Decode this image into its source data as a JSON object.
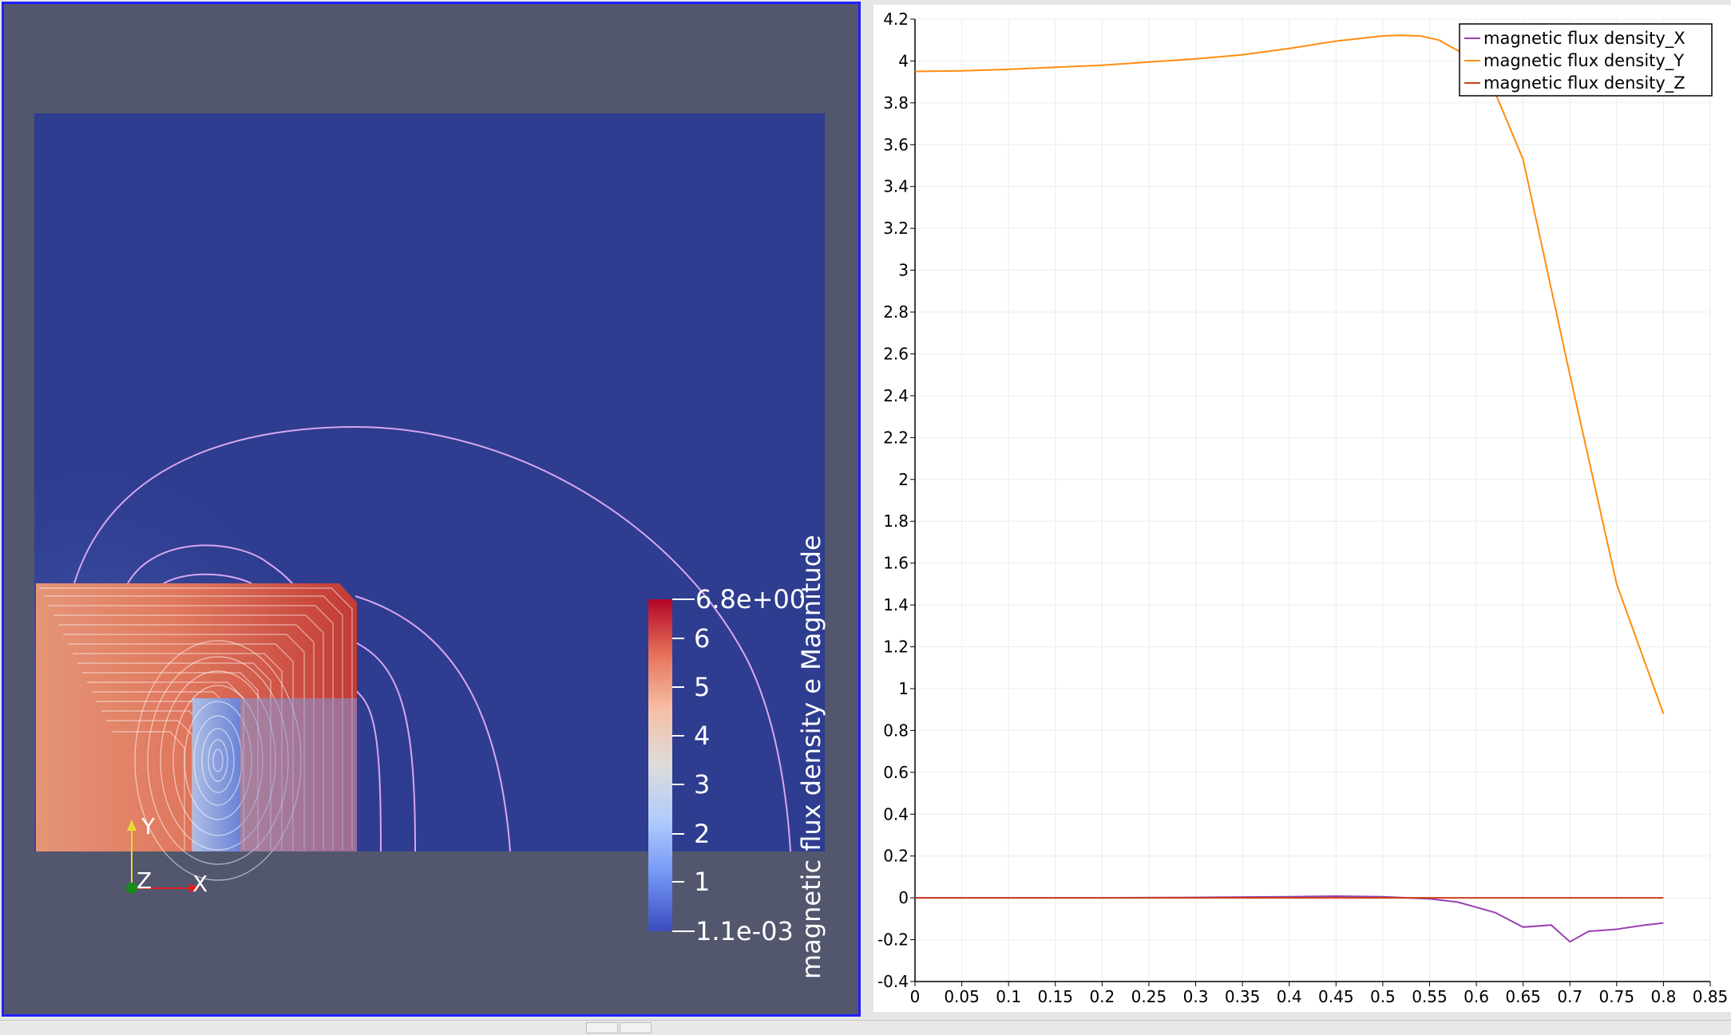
{
  "render_view": {
    "colorbar": {
      "title": "magnetic flux density e Magnitude",
      "max_label": "6.8e+00",
      "min_label": "1.1e-03",
      "tick_labels": [
        "6",
        "5",
        "4",
        "3",
        "2",
        "1"
      ],
      "colors": [
        "#3b4cc0",
        "#7396f5",
        "#b0cbfc",
        "#dddcdb",
        "#f6bfa6",
        "#e7745b",
        "#b40426"
      ]
    },
    "axes": {
      "x_label": "X",
      "y_label": "Y",
      "z_label": "Z"
    },
    "colors": {
      "background": "#52576e",
      "field_low": "#2e3d8f",
      "border": "#2020ff"
    }
  },
  "chart_data": {
    "type": "line",
    "xlim": [
      0,
      0.85
    ],
    "ylim": [
      -0.4,
      4.2
    ],
    "x_ticks": [
      "0",
      "0.05",
      "0.1",
      "0.15",
      "0.2",
      "0.25",
      "0.3",
      "0.35",
      "0.4",
      "0.45",
      "0.5",
      "0.55",
      "0.6",
      "0.65",
      "0.7",
      "0.75",
      "0.8",
      "0.85"
    ],
    "y_ticks": [
      "-0.4",
      "-0.2",
      "0",
      "0.2",
      "0.4",
      "0.6",
      "0.8",
      "1",
      "1.2",
      "1.4",
      "1.6",
      "1.8",
      "2",
      "2.2",
      "2.4",
      "2.6",
      "2.8",
      "3",
      "3.2",
      "3.4",
      "3.6",
      "3.8",
      "4",
      "4.2"
    ],
    "legend_position": "top-right",
    "series": [
      {
        "name": "magnetic flux density_X",
        "color": "#9b3fb0",
        "x": [
          0,
          0.1,
          0.2,
          0.3,
          0.4,
          0.45,
          0.5,
          0.55,
          0.58,
          0.62,
          0.65,
          0.68,
          0.7,
          0.72,
          0.75,
          0.78,
          0.8
        ],
        "y": [
          0,
          0,
          0,
          0.002,
          0.005,
          0.008,
          0.005,
          -0.005,
          -0.02,
          -0.07,
          -0.14,
          -0.13,
          -0.21,
          -0.16,
          -0.15,
          -0.13,
          -0.12
        ]
      },
      {
        "name": "magnetic flux density_Y",
        "color": "#ff8c10",
        "x": [
          0,
          0.05,
          0.1,
          0.15,
          0.2,
          0.25,
          0.3,
          0.35,
          0.4,
          0.45,
          0.5,
          0.52,
          0.54,
          0.56,
          0.58,
          0.6,
          0.62,
          0.65,
          0.7,
          0.75,
          0.8
        ],
        "y": [
          3.95,
          3.953,
          3.96,
          3.97,
          3.98,
          3.995,
          4.01,
          4.03,
          4.06,
          4.095,
          4.12,
          4.123,
          4.12,
          4.1,
          4.05,
          4.0,
          3.85,
          3.53,
          2.5,
          1.5,
          0.88
        ]
      },
      {
        "name": "magnetic flux density_Z",
        "color": "#c8401c",
        "x": [
          0,
          0.8
        ],
        "y": [
          0,
          0
        ]
      }
    ]
  }
}
